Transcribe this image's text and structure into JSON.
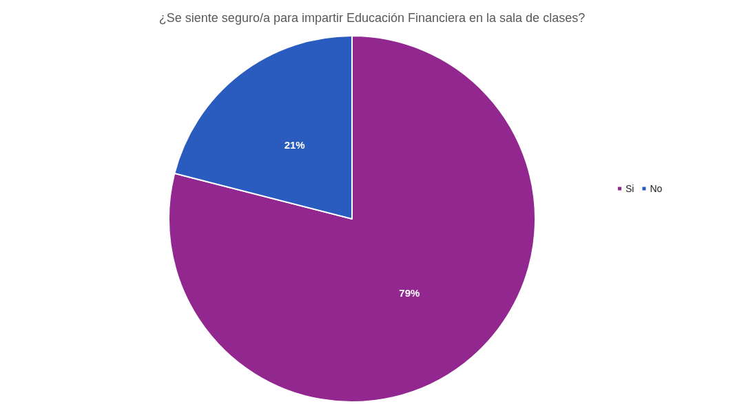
{
  "chart_data": {
    "type": "pie",
    "title": "¿Se siente seguro/a para impartir Educación Financiera en la sala de clases?",
    "categories": [
      "Si",
      "No"
    ],
    "values": [
      79,
      21
    ],
    "colors": [
      "#92278f",
      "#2a5bbf"
    ],
    "value_labels": [
      "79%",
      "21%"
    ],
    "legend": "right"
  }
}
